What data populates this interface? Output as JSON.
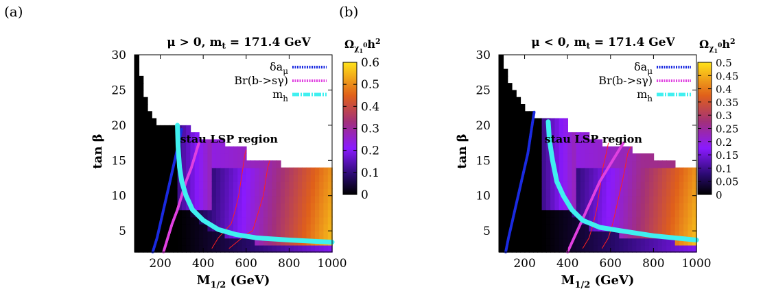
{
  "panel_labels": [
    "(a)",
    "(b)"
  ],
  "chart_data": [
    {
      "type": "heatmap",
      "panel": "(a)",
      "title": "μ > 0, m_t = 171.4 GeV",
      "title_parts": {
        "lhs": "μ > 0, m",
        "sub": "t",
        "rhs": " = 171.4 GeV"
      },
      "xlabel": "M1/2 (GeV)",
      "xlabel_parts": {
        "base": "M",
        "sub": "1/2",
        "rest": " (GeV)"
      },
      "ylabel": "tan β",
      "xlim": [
        80,
        1000
      ],
      "ylim": [
        2,
        30
      ],
      "xticks": [
        "200",
        "400",
        "600",
        "800",
        "1000"
      ],
      "xtick_values": [
        200,
        400,
        600,
        800,
        1000
      ],
      "yticks": [
        "5",
        "10",
        "15",
        "20",
        "25",
        "30"
      ],
      "ytick_values": [
        5,
        10,
        15,
        20,
        25,
        30
      ],
      "colorbar": {
        "label": "Ωχ1⁰h²",
        "range": [
          0,
          0.6
        ],
        "ticks": [
          "0.6",
          "0.5",
          "0.4",
          "0.3",
          "0.2",
          "0.1",
          "0"
        ],
        "tick_values": [
          0.6,
          0.5,
          0.4,
          0.3,
          0.2,
          0.1,
          0
        ]
      },
      "annotation": "stau LSP region",
      "boundary": [
        [
          90,
          30
        ],
        [
          100,
          28
        ],
        [
          110,
          26.5
        ],
        [
          120,
          25
        ],
        [
          130,
          24
        ],
        [
          140,
          23
        ],
        [
          150,
          22
        ],
        [
          160,
          21
        ],
        [
          180,
          20.5
        ],
        [
          200,
          20
        ],
        [
          280,
          20
        ],
        [
          280,
          19.5
        ],
        [
          330,
          19.5
        ],
        [
          340,
          19
        ],
        [
          370,
          18.5
        ],
        [
          400,
          17.5
        ],
        [
          500,
          17.5
        ],
        [
          500,
          16.5
        ],
        [
          600,
          16.5
        ],
        [
          600,
          15
        ],
        [
          750,
          15
        ],
        [
          750,
          14
        ],
        [
          1000,
          14
        ]
      ],
      "series": [
        {
          "name": "δa_μ",
          "label_base": "δa",
          "label_sub": "μ",
          "color": "#1a2ae0",
          "style": "dotted",
          "points": [
            [
              165,
              2
            ],
            [
              185,
              4
            ],
            [
              200,
              6
            ],
            [
              215,
              8
            ],
            [
              230,
              10
            ],
            [
              245,
              12
            ],
            [
              260,
              14
            ],
            [
              275,
              16
            ],
            [
              290,
              18
            ],
            [
              300,
              19.5
            ]
          ]
        },
        {
          "name": "Br(b->sγ)",
          "label_base": "Br(b->sγ)",
          "label_sub": "",
          "color": "#e040e0",
          "style": "dotted",
          "points": [
            [
              215,
              2
            ],
            [
              235,
              4
            ],
            [
              255,
              6
            ],
            [
              280,
              8
            ],
            [
              300,
              10
            ],
            [
              320,
              12
            ],
            [
              345,
              14
            ],
            [
              365,
              16
            ],
            [
              380,
              17.5
            ]
          ]
        },
        {
          "name": "m_h",
          "label_base": "m",
          "label_sub": "h",
          "color": "#40f0f0",
          "style": "dashdot",
          "points": [
            [
              280,
              20
            ],
            [
              283,
              17
            ],
            [
              290,
              14
            ],
            [
              300,
              12
            ],
            [
              320,
              10
            ],
            [
              350,
              8
            ],
            [
              400,
              6.5
            ],
            [
              470,
              5.2
            ],
            [
              550,
              4.5
            ],
            [
              650,
              4
            ],
            [
              800,
              3.7
            ],
            [
              1000,
              3.4
            ]
          ]
        }
      ],
      "contours": [
        {
          "color": "#ff2020",
          "points": [
            [
              440,
              2.5
            ],
            [
              470,
              4
            ],
            [
              500,
              5
            ],
            [
              530,
              6
            ],
            [
              550,
              8
            ],
            [
              565,
              10
            ],
            [
              575,
              12
            ],
            [
              585,
              14
            ],
            [
              595,
              16
            ],
            [
              600,
              16.5
            ]
          ]
        },
        {
          "color": "#ff2020",
          "points": [
            [
              520,
              2.5
            ],
            [
              560,
              3.5
            ],
            [
              600,
              4.5
            ],
            [
              630,
              5
            ],
            [
              660,
              8
            ],
            [
              680,
              10
            ],
            [
              690,
              12
            ],
            [
              700,
              14
            ],
            [
              710,
              15
            ]
          ]
        }
      ]
    },
    {
      "type": "heatmap",
      "panel": "(b)",
      "title": "μ < 0, m_t = 171.4 GeV",
      "title_parts": {
        "lhs": "μ < 0, m",
        "sub": "t",
        "rhs": " = 171.4 GeV"
      },
      "xlabel": "M1/2 (GeV)",
      "xlabel_parts": {
        "base": "M",
        "sub": "1/2",
        "rest": " (GeV)"
      },
      "ylabel": "tan β",
      "xlim": [
        80,
        1000
      ],
      "ylim": [
        2,
        30
      ],
      "xticks": [
        "200",
        "400",
        "600",
        "800",
        "1000"
      ],
      "xtick_values": [
        200,
        400,
        600,
        800,
        1000
      ],
      "yticks": [
        "5",
        "10",
        "15",
        "20",
        "25",
        "30"
      ],
      "ytick_values": [
        5,
        10,
        15,
        20,
        25,
        30
      ],
      "colorbar": {
        "label": "Ωχ1⁰h²",
        "range": [
          0,
          0.5
        ],
        "ticks": [
          "0.5",
          "0.45",
          "0.4",
          "0.35",
          "0.3",
          "0.25",
          "0.2",
          "0.15",
          "0.1",
          "0.05",
          "0"
        ],
        "tick_values": [
          0.5,
          0.45,
          0.4,
          0.35,
          0.3,
          0.25,
          0.2,
          0.15,
          0.1,
          0.05,
          0
        ]
      },
      "annotation": "stau LSP region",
      "boundary": [
        [
          90,
          30
        ],
        [
          100,
          29
        ],
        [
          110,
          27.5
        ],
        [
          120,
          26
        ],
        [
          140,
          25
        ],
        [
          160,
          24
        ],
        [
          180,
          23
        ],
        [
          200,
          22.5
        ],
        [
          230,
          22
        ],
        [
          240,
          21.5
        ],
        [
          300,
          21
        ],
        [
          320,
          20.5
        ],
        [
          400,
          20.5
        ],
        [
          400,
          19
        ],
        [
          500,
          19
        ],
        [
          500,
          18
        ],
        [
          560,
          18
        ],
        [
          560,
          17
        ],
        [
          700,
          17
        ],
        [
          700,
          15.5
        ],
        [
          800,
          15.5
        ],
        [
          800,
          14.5
        ],
        [
          900,
          14.5
        ],
        [
          900,
          13.5
        ],
        [
          1000,
          13.5
        ]
      ],
      "series": [
        {
          "name": "δa_μ",
          "label_base": "δa",
          "label_sub": "μ",
          "color": "#1a2ae0",
          "style": "dotted",
          "points": [
            [
              112,
              2
            ],
            [
              125,
              4
            ],
            [
              140,
              6
            ],
            [
              155,
              8
            ],
            [
              170,
              10
            ],
            [
              185,
              12
            ],
            [
              200,
              14
            ],
            [
              215,
              16
            ],
            [
              225,
              18
            ],
            [
              235,
              20
            ],
            [
              245,
              22
            ]
          ]
        },
        {
          "name": "Br(b->sγ)",
          "label_base": "Br(b->sγ)",
          "label_sub": "",
          "color": "#e040e0",
          "style": "dotted",
          "points": [
            [
              400,
              2
            ],
            [
              430,
              4
            ],
            [
              460,
              6
            ],
            [
              490,
              8
            ],
            [
              520,
              10
            ],
            [
              550,
              12
            ],
            [
              580,
              13.5
            ],
            [
              610,
              15
            ],
            [
              640,
              16.5
            ],
            [
              660,
              17.5
            ]
          ]
        },
        {
          "name": "m_h",
          "label_base": "m",
          "label_sub": "h",
          "color": "#40f0f0",
          "style": "dashdot",
          "points": [
            [
              310,
              20.5
            ],
            [
              315,
              18
            ],
            [
              330,
              15
            ],
            [
              350,
              12
            ],
            [
              380,
              10
            ],
            [
              420,
              8
            ],
            [
              470,
              6.5
            ],
            [
              550,
              5.5
            ],
            [
              650,
              5
            ],
            [
              800,
              4.3
            ],
            [
              1000,
              3.7
            ]
          ]
        }
      ],
      "contours": [
        {
          "color": "#ff2020",
          "points": [
            [
              470,
              2.5
            ],
            [
              500,
              4
            ],
            [
              520,
              6
            ],
            [
              535,
              8
            ],
            [
              545,
              10
            ],
            [
              555,
              12
            ],
            [
              565,
              14
            ],
            [
              580,
              16
            ],
            [
              590,
              17.5
            ]
          ]
        },
        {
          "color": "#ff2020",
          "points": [
            [
              560,
              2.5
            ],
            [
              590,
              4
            ],
            [
              610,
              6
            ],
            [
              625,
              8
            ],
            [
              640,
              10
            ],
            [
              655,
              12
            ],
            [
              668,
              14
            ],
            [
              680,
              16
            ],
            [
              695,
              17
            ]
          ]
        }
      ]
    }
  ]
}
